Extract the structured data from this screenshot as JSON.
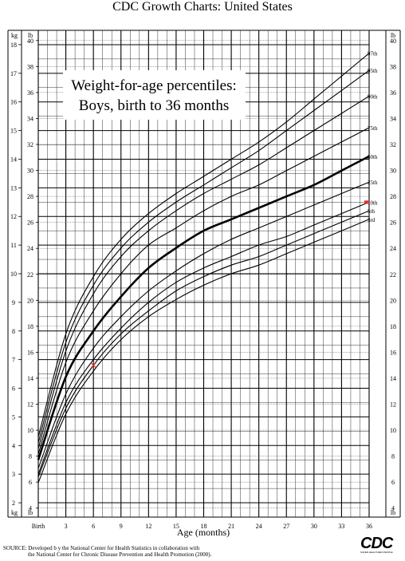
{
  "page_header": "CDC Growth Charts: United States",
  "source_line1": "SOURCE: Developed b    y the National Center for Health Statistics in collaboration with",
  "source_line2": "the National Center for Chronic Disease Prevention and Health Promotion (2000).",
  "logo_text": "CDC",
  "logo_subtext": "SAFER·HEALTHIER·PEOPLE",
  "chart_data": {
    "type": "line",
    "title_line1": "Weight-for-age percentiles:",
    "title_line2": "Boys, birth to 36 months",
    "xlabel": "Age (months)",
    "x_unit_left": "kg",
    "y_unit_lb": "lb",
    "xlim": [
      0,
      36
    ],
    "ylim_kg": [
      1.5,
      18.5
    ],
    "x_ticks": [
      0,
      3,
      6,
      9,
      12,
      15,
      18,
      21,
      24,
      27,
      30,
      33,
      36
    ],
    "x_tick_labels": [
      "Birth",
      "3",
      "6",
      "9",
      "12",
      "15",
      "18",
      "21",
      "24",
      "27",
      "30",
      "33",
      "36"
    ],
    "kg_ticks": [
      2,
      3,
      4,
      5,
      6,
      7,
      8,
      9,
      10,
      11,
      12,
      13,
      14,
      15,
      16,
      17,
      18
    ],
    "lb_ticks": [
      4,
      6,
      8,
      10,
      12,
      14,
      16,
      18,
      20,
      22,
      24,
      26,
      28,
      30,
      32,
      34,
      36,
      38,
      40
    ],
    "grid": true,
    "x": [
      0,
      3,
      6,
      9,
      12,
      15,
      18,
      21,
      24,
      27,
      30,
      33,
      36
    ],
    "series": [
      {
        "name": "97th",
        "values": [
          4.3,
          7.9,
          9.9,
          11.2,
          12.1,
          12.8,
          13.4,
          14.0,
          14.6,
          15.3,
          16.1,
          16.9,
          17.7
        ]
      },
      {
        "name": "95th",
        "values": [
          4.1,
          7.6,
          9.6,
          10.9,
          11.8,
          12.5,
          13.1,
          13.7,
          14.3,
          15.0,
          15.7,
          16.4,
          17.1
        ]
      },
      {
        "name": "90th",
        "values": [
          3.9,
          7.3,
          9.3,
          10.6,
          11.5,
          12.2,
          12.8,
          13.3,
          13.8,
          14.4,
          15.0,
          15.6,
          16.2
        ]
      },
      {
        "name": "75th",
        "values": [
          3.7,
          6.9,
          8.7,
          10.0,
          11.0,
          11.6,
          12.2,
          12.7,
          13.1,
          13.6,
          14.1,
          14.6,
          15.1
        ]
      },
      {
        "name": "50th",
        "values": [
          3.5,
          6.4,
          8.0,
          9.2,
          10.2,
          10.9,
          11.5,
          11.9,
          12.3,
          12.7,
          13.1,
          13.6,
          14.1
        ]
      },
      {
        "name": "25th",
        "values": [
          3.2,
          5.8,
          7.4,
          8.5,
          9.4,
          10.1,
          10.7,
          11.2,
          11.6,
          12.0,
          12.4,
          12.8,
          13.2
        ]
      },
      {
        "name": "10th",
        "values": [
          3.0,
          5.5,
          7.0,
          8.1,
          9.0,
          9.7,
          10.2,
          10.6,
          11.0,
          11.3,
          11.7,
          12.1,
          12.5
        ]
      },
      {
        "name": "5th",
        "values": [
          2.9,
          5.3,
          6.8,
          7.9,
          8.7,
          9.4,
          9.9,
          10.3,
          10.6,
          11.0,
          11.4,
          11.8,
          12.2
        ]
      },
      {
        "name": "3rd",
        "values": [
          2.7,
          5.1,
          6.6,
          7.7,
          8.5,
          9.1,
          9.6,
          10.0,
          10.3,
          10.7,
          11.1,
          11.5,
          11.9
        ]
      }
    ],
    "bold_series": "50th",
    "marker": {
      "x": 6,
      "y": 6.8,
      "color": "#e03030",
      "symbol": "x"
    },
    "edge_marker": {
      "x": 36,
      "y": 12.5,
      "color": "#e03030"
    },
    "line_color": "#000000",
    "grid_color": "#000000"
  }
}
